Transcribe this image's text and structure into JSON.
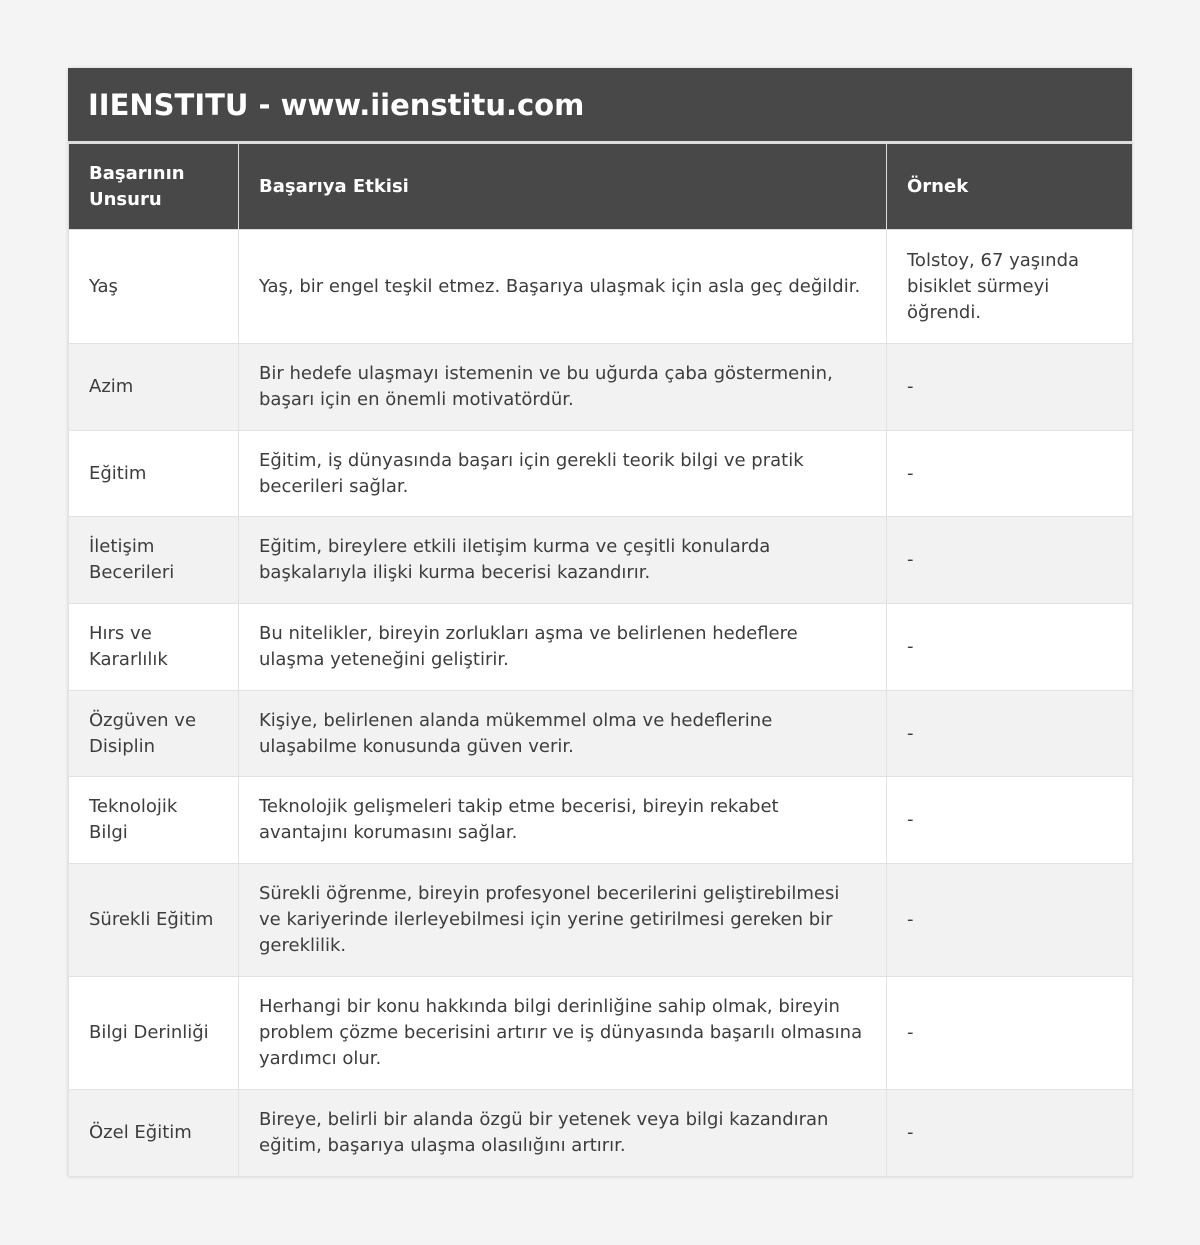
{
  "title": "IIENSTITU - www.iienstitu.com",
  "headers": [
    "Başarının Unsuru",
    "Başarıya Etkisi",
    "Örnek"
  ],
  "rows": [
    {
      "element": "Yaş",
      "effect": "Yaş, bir engel teşkil etmez. Başarıya ulaşmak için asla geç değildir.",
      "example": "Tolstoy, 67 yaşında bisiklet sürmeyi öğrendi."
    },
    {
      "element": "Azim",
      "effect": "Bir hedefe ulaşmayı istemenin ve bu uğurda çaba göstermenin, başarı için en önemli motivatördür.",
      "example": "-"
    },
    {
      "element": "Eğitim",
      "effect": "Eğitim, iş dünyasında başarı için gerekli teorik bilgi ve pratik becerileri sağlar.",
      "example": "-"
    },
    {
      "element": "İletişim Becerileri",
      "effect": "Eğitim, bireylere etkili iletişim kurma ve çeşitli konularda başkalarıyla ilişki kurma becerisi kazandırır.",
      "example": "-"
    },
    {
      "element": "Hırs ve Kararlılık",
      "effect": "Bu nitelikler, bireyin zorlukları aşma ve belirlenen hedeflere ulaşma yeteneğini geliştirir.",
      "example": "-"
    },
    {
      "element": "Özgüven ve Disiplin",
      "effect": "Kişiye, belirlenen alanda mükemmel olma ve hedeflerine ulaşabilme konusunda güven verir.",
      "example": "-"
    },
    {
      "element": "Teknolojik Bilgi",
      "effect": "Teknolojik gelişmeleri takip etme becerisi, bireyin rekabet avantajını korumasını sağlar.",
      "example": "-"
    },
    {
      "element": "Sürekli Eğitim",
      "effect": "Sürekli öğrenme, bireyin profesyonel becerilerini geliştirebilmesi ve kariyerinde ilerleyebilmesi için yerine getirilmesi gereken bir gereklilik.",
      "example": "-"
    },
    {
      "element": "Bilgi Derinliği",
      "effect": "Herhangi bir konu hakkında bilgi derinliğine sahip olmak, bireyin problem çözme becerisini artırır ve iş dünyasında başarılı olmasına yardımcı olur.",
      "example": "-"
    },
    {
      "element": "Özel Eğitim",
      "effect": "Bireye, belirli bir alanda özgü bir yetenek veya bilgi kazandıran eğitim, başarıya ulaşma olasılığını artırır.",
      "example": "-"
    }
  ]
}
